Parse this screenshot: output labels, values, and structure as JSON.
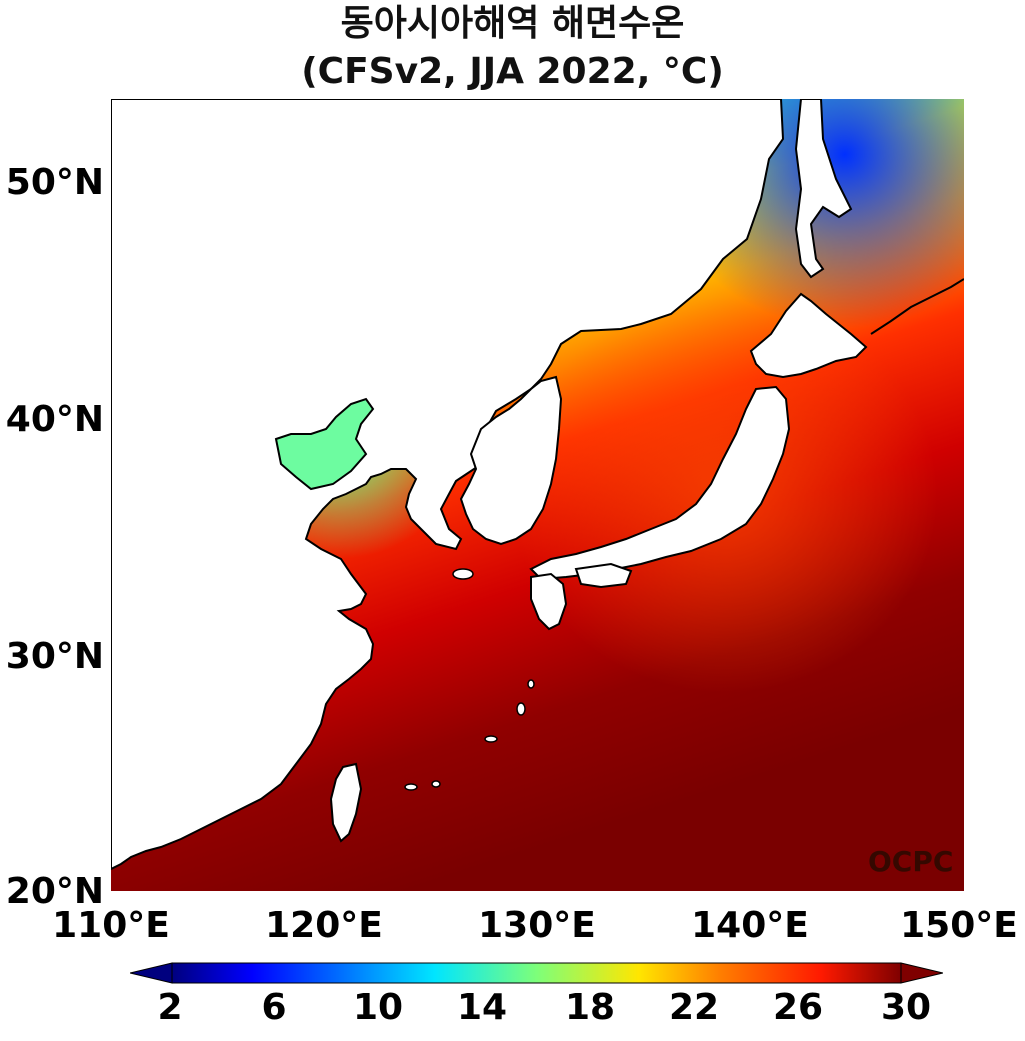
{
  "title": {
    "line1": "동아시아해역 해면수온",
    "line2": "(CFSv2, JJA 2022, °C)"
  },
  "axes": {
    "y_ticks": [
      "50°N",
      "40°N",
      "30°N",
      "20°N"
    ],
    "x_ticks": [
      "110°E",
      "120°E",
      "130°E",
      "140°E",
      "150°E"
    ],
    "lon_range": [
      110,
      150
    ],
    "lat_range": [
      20,
      53.5
    ]
  },
  "colorbar": {
    "ticks": [
      "2",
      "6",
      "10",
      "14",
      "18",
      "22",
      "26",
      "30"
    ],
    "range": [
      2,
      30
    ],
    "extend": "both",
    "colormap": "jet"
  },
  "credit": "OCPC",
  "colors": {
    "land": "#ffffff",
    "coast": "#000000",
    "warmest": "#800000",
    "coldest": "#000080"
  }
}
